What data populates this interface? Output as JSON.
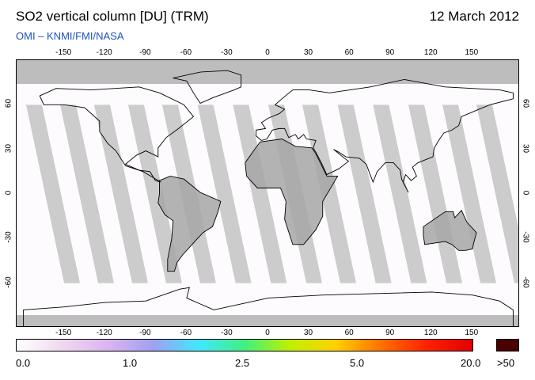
{
  "header": {
    "title": "SO2 vertical column [DU] (TRM)",
    "date": "12 March 2012",
    "subtitle": "OMI  –  KNMI/FMI/NASA"
  },
  "map": {
    "projection": "equirectangular",
    "lon_ticks": [
      "-150",
      "-120",
      "-90",
      "-60",
      "-30",
      "0",
      "30",
      "60",
      "90",
      "120",
      "150"
    ],
    "lat_ticks_left": [
      "60",
      "30",
      "0",
      "-30",
      "-60"
    ],
    "lat_ticks_right": [
      "60",
      "30",
      "0",
      "-30",
      "-60"
    ],
    "swath_color": "#cccccc",
    "nodata_color": "#bdbdbd",
    "land_shade_color": "#a6a6a6",
    "coastline_color": "#000000"
  },
  "colorbar": {
    "labels": [
      "0.0",
      "1.0",
      "2.5",
      "5.0",
      "20.0",
      ">50"
    ],
    "gradient_colors": [
      "#ffffff",
      "#f0d8f0",
      "#dcb4f0",
      "#a0a0f0",
      "#40e8ff",
      "#40f080",
      "#c0f000",
      "#ffd000",
      "#ff7000",
      "#ff2000",
      "#e00000"
    ],
    "overflow_color": "#4a0000"
  }
}
